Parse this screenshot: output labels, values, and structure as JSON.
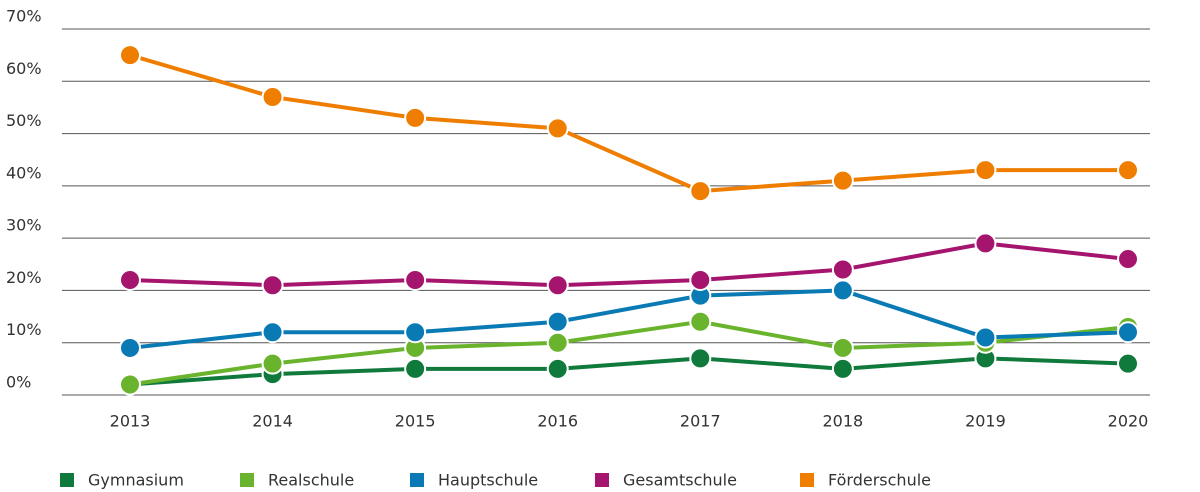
{
  "chart_data": {
    "type": "line",
    "categories": [
      "2013",
      "2014",
      "2015",
      "2016",
      "2017",
      "2018",
      "2019",
      "2020"
    ],
    "series": [
      {
        "name": "Gymnasium",
        "color": "#0f7a3c",
        "values": [
          2,
          4,
          5,
          5,
          7,
          5,
          7,
          6
        ]
      },
      {
        "name": "Realschule",
        "color": "#6ab42d",
        "values": [
          2,
          6,
          9,
          10,
          14,
          9,
          10,
          13
        ]
      },
      {
        "name": "Hauptschule",
        "color": "#0a7ab5",
        "values": [
          9,
          12,
          12,
          14,
          19,
          20,
          11,
          12
        ]
      },
      {
        "name": "Gesamtschule",
        "color": "#a5156e",
        "values": [
          22,
          21,
          22,
          21,
          22,
          24,
          29,
          26
        ]
      },
      {
        "name": "Förderschule",
        "color": "#ef7d00",
        "values": [
          65,
          57,
          53,
          51,
          39,
          41,
          43,
          43
        ]
      }
    ],
    "ylim": [
      0,
      70
    ],
    "yticks": [
      {
        "value": 0,
        "label": "0%"
      },
      {
        "value": 10,
        "label": "10%"
      },
      {
        "value": 20,
        "label": "20%"
      },
      {
        "value": 30,
        "label": "30%"
      },
      {
        "value": 40,
        "label": "40%"
      },
      {
        "value": 50,
        "label": "50%"
      },
      {
        "value": 60,
        "label": "60%"
      },
      {
        "value": 70,
        "label": "70%"
      }
    ],
    "grid": true,
    "legend": "bottom"
  }
}
